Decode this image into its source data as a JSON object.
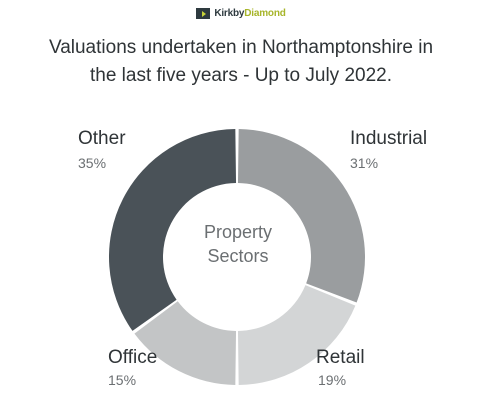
{
  "logo": {
    "mark_color": "#2e3a3f",
    "accent": "#a7b52a",
    "text_part1": "Kirkby",
    "text_part2": "Diamond"
  },
  "title_line1": "Valuations undertaken in Northamptonshire in",
  "title_line2": "the last five years - Up to July 2022.",
  "chart_data": {
    "type": "pie",
    "donut": true,
    "center_label": [
      "Property",
      "Sectors"
    ],
    "slices": [
      {
        "label": "Industrial",
        "value": 31,
        "value_label": "31%",
        "color": "#9a9d9f"
      },
      {
        "label": "Retail",
        "value": 19,
        "value_label": "19%",
        "color": "#d3d5d6"
      },
      {
        "label": "Office",
        "value": 15,
        "value_label": "15%",
        "color": "#c3c5c6"
      },
      {
        "label": "Other",
        "value": 35,
        "value_label": "35%",
        "color": "#4a5258"
      }
    ]
  }
}
